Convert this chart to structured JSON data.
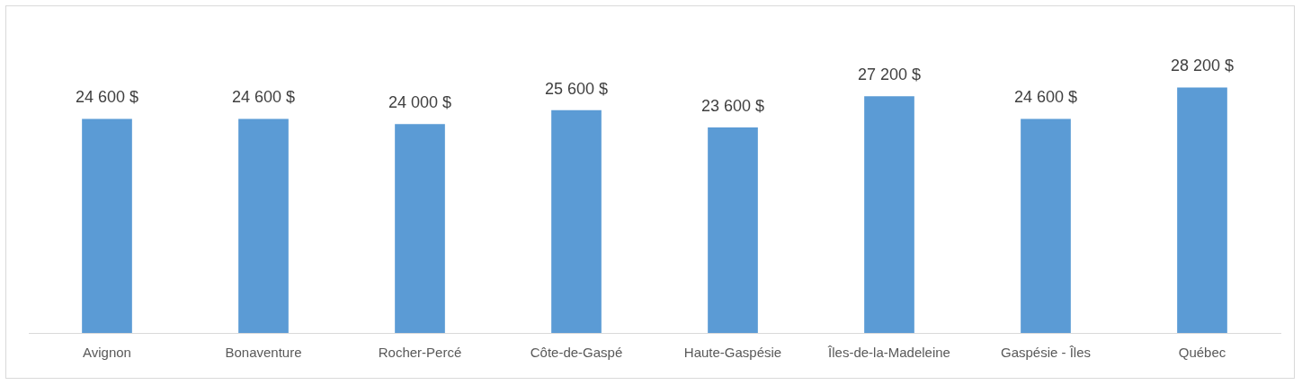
{
  "chart_data": {
    "type": "bar",
    "categories": [
      "Avignon",
      "Bonaventure",
      "Rocher-Percé",
      "Côte-de-Gaspé",
      "Haute-Gaspésie",
      "Îles-de-la-Madeleine",
      "Gaspésie - Îles",
      "Québec"
    ],
    "values": [
      24600,
      24600,
      24000,
      25600,
      23600,
      27200,
      24600,
      28200
    ],
    "value_labels": [
      "24 600 $",
      "24 600 $",
      "24 000 $",
      "25 600 $",
      "23 600 $",
      "27 200 $",
      "24 600 $",
      "28 200 $"
    ],
    "color": "#5b9bd5",
    "tick_labels": "x",
    "grid": false,
    "legend": false
  }
}
